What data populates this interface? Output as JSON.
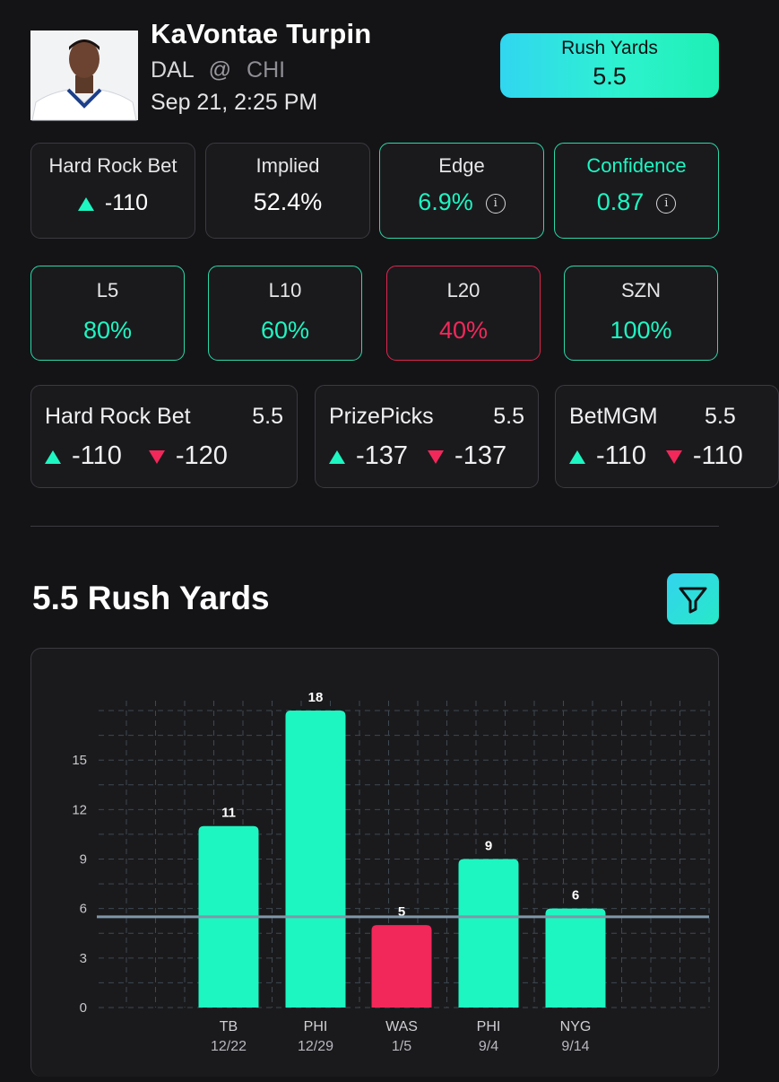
{
  "player": {
    "name": "KaVontae Turpin",
    "team": "DAL",
    "at": "@",
    "opponent": "CHI",
    "datetime": "Sep 21, 2:25 PM"
  },
  "market": {
    "label": "Rush Yards",
    "line": "5.5"
  },
  "stats": {
    "book": {
      "title": "Hard Rock Bet",
      "value": "-110"
    },
    "implied": {
      "title": "Implied",
      "value": "52.4%"
    },
    "edge": {
      "title": "Edge",
      "value": "6.9%"
    },
    "confidence": {
      "title": "Confidence",
      "value": "0.87"
    },
    "info_glyph": "i"
  },
  "hit_rates": [
    {
      "title": "L5",
      "value": "80%",
      "status": "green"
    },
    {
      "title": "L10",
      "value": "60%",
      "status": "green"
    },
    {
      "title": "L20",
      "value": "40%",
      "status": "red"
    },
    {
      "title": "SZN",
      "value": "100%",
      "status": "green"
    }
  ],
  "books": [
    {
      "name": "Hard Rock Bet",
      "line": "5.5",
      "over": "-110",
      "under": "-120"
    },
    {
      "name": "PrizePicks",
      "line": "5.5",
      "over": "-137",
      "under": "-137"
    },
    {
      "name": "BetMGM",
      "line": "5.5",
      "over": "-110",
      "under": "-110"
    }
  ],
  "chart_title": "5.5 Rush Yards",
  "colors": {
    "accent": "#1ef6c2",
    "miss": "#f2285a",
    "line": "#7f97a8"
  },
  "chart_data": {
    "type": "bar",
    "title": "5.5 Rush Yards",
    "categories": [
      "TB",
      "PHI",
      "WAS",
      "PHI",
      "NYG"
    ],
    "dates": [
      "12/22",
      "12/29",
      "1/5",
      "9/4",
      "9/14"
    ],
    "values": [
      11,
      18,
      5,
      9,
      6
    ],
    "threshold": 5.5,
    "yticks": [
      0,
      3,
      6,
      9,
      12,
      15
    ],
    "ylim": [
      0,
      18.6
    ],
    "grid": true,
    "xlabel": "",
    "ylabel": ""
  }
}
